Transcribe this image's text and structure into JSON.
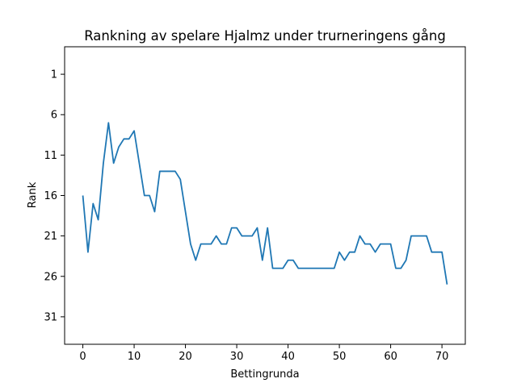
{
  "chart_data": {
    "type": "line",
    "title": "Rankning av spelare Hjalmz under trurneringens gång",
    "xlabel": "Bettingrunda",
    "ylabel": "Rank",
    "xlim": [
      -3.55,
      74.55
    ],
    "ylim": [
      34.4,
      -2.4
    ],
    "y_inverted": true,
    "xticks": [
      0,
      10,
      20,
      30,
      40,
      50,
      60,
      70
    ],
    "yticks": [
      1,
      6,
      11,
      16,
      21,
      26,
      31
    ],
    "grid": false,
    "legend": "none",
    "color": "#1f77b4",
    "series": [
      {
        "x": [
          0,
          1,
          2,
          3,
          4,
          5,
          6,
          7,
          8,
          9,
          10,
          11,
          12,
          13,
          14,
          15,
          16,
          17,
          18,
          19,
          20,
          21,
          22,
          23,
          24,
          25,
          26,
          27,
          28,
          29,
          30,
          31,
          32,
          33,
          34,
          35,
          36,
          37,
          38,
          39,
          40,
          41,
          42,
          43,
          44,
          45,
          46,
          47,
          48,
          49,
          50,
          51,
          52,
          53,
          54,
          55,
          56,
          57,
          58,
          59,
          60,
          61,
          62,
          63,
          64,
          65,
          66,
          67,
          68,
          69,
          70,
          71
        ],
        "values": [
          16,
          23,
          17,
          19,
          12,
          7,
          12,
          10,
          9,
          9,
          8,
          12,
          16,
          16,
          18,
          13,
          13,
          13,
          13,
          14,
          18,
          22,
          24,
          22,
          22,
          22,
          21,
          22,
          22,
          20,
          20,
          21,
          21,
          21,
          20,
          24,
          20,
          25,
          25,
          25,
          24,
          24,
          25,
          25,
          25,
          25,
          25,
          25,
          25,
          25,
          23,
          24,
          23,
          23,
          21,
          22,
          22,
          23,
          22,
          22,
          22,
          25,
          25,
          24,
          21,
          21,
          21,
          21,
          23,
          23,
          23,
          27
        ]
      }
    ]
  }
}
